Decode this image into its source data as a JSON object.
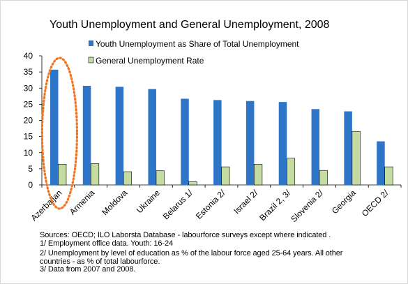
{
  "chart_data": {
    "type": "bar",
    "title": "Youth Unemployment and General Unemployment, 2008",
    "categories": [
      "Azerbaijan",
      "Armenia",
      "Moldova",
      "Ukraine",
      "Belarus 1/",
      "Estonia 2/",
      "Israel 2/",
      "Brazil 2, 3/",
      "Slovenia 2/",
      "Georgia",
      "OECD 2/"
    ],
    "series": [
      {
        "name": "Youth Unemployment as Share of Total Unemployment",
        "values": [
          35.7,
          30.7,
          30.4,
          29.7,
          26.7,
          26.3,
          26.0,
          25.7,
          23.5,
          22.8,
          13.5
        ],
        "color": "#2e75c8"
      },
      {
        "name": "General Unemployment Rate",
        "values": [
          6.4,
          6.6,
          4.1,
          4.4,
          1.0,
          5.6,
          6.4,
          8.3,
          4.5,
          16.6,
          5.6
        ],
        "color": "#c4dba1"
      }
    ],
    "ylim": [
      0,
      40
    ],
    "yticks": [
      0,
      5,
      10,
      15,
      20,
      25,
      30,
      35,
      40
    ],
    "grid": false,
    "legend": "top",
    "annotation": {
      "shape": "ellipse",
      "style": "dotted",
      "color": "#f07622",
      "target": "Azerbaijan"
    }
  },
  "notes": {
    "sources": "Sources: OECD; ILO Laborsta Database - labourforce surveys except where indicated .",
    "note1": "1/ Employment office data. Youth: 16-24",
    "note2_line1": "2/  Unemployment by level of education as % of the labour force aged 25-64 years. All other",
    "note2_line2": "countries - as % of total labourforce.",
    "note3": "3/ Data from 2007 and 2008."
  }
}
